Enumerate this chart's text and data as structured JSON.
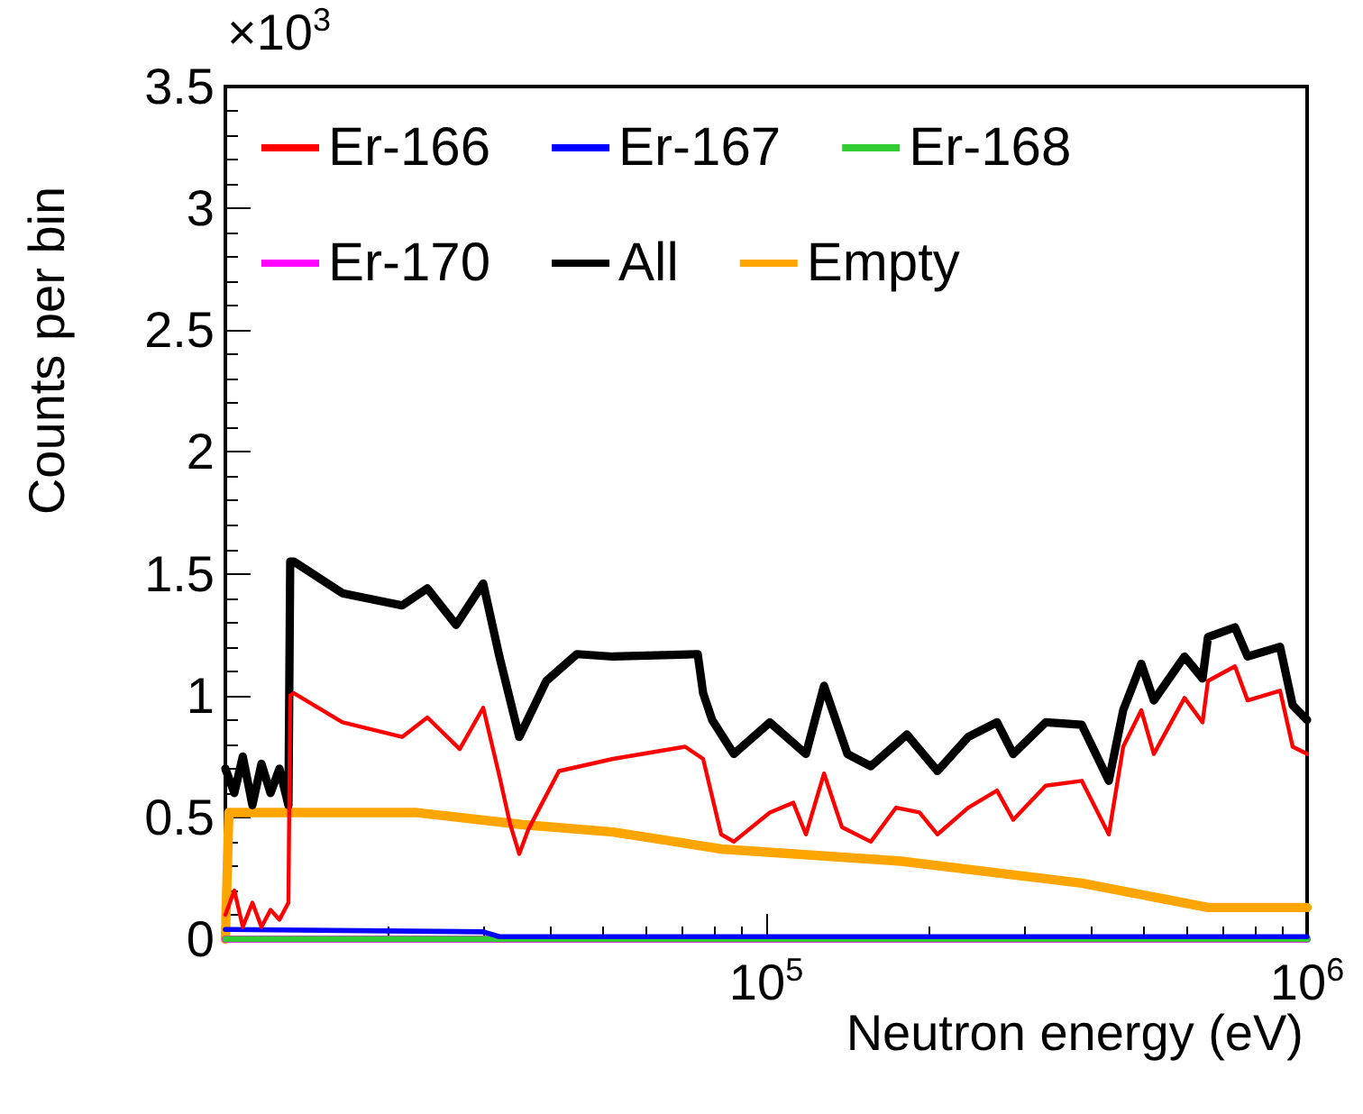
{
  "chart_data": {
    "type": "line",
    "xlabel": "Neutron energy (eV)",
    "ylabel": "Counts per bin",
    "annotations": [
      "×10$^{3}$"
    ],
    "log": "x",
    "grid": false,
    "legend": "top",
    "line_style": "solid",
    "marker": "none",
    "xlim": [
      10000,
      1000000
    ],
    "xticks": [
      {
        "value": 10000,
        "label": null
      },
      {
        "value": 100000,
        "label": "10$^{5}$"
      },
      {
        "value": 1000000,
        "label": "10$^{6}$"
      }
    ],
    "ylim": [
      0,
      3.5
    ],
    "yticks": [
      0,
      0.5,
      1,
      1.5,
      2,
      2.5,
      3,
      3.5
    ],
    "series": [
      {
        "name": "Er-166",
        "color": "#ff0000",
        "x": [
          10000,
          10390,
          10770,
          11220,
          11660,
          12120,
          12590,
          13080,
          13180,
          13390,
          16460,
          21220,
          23630,
          27120,
          29970,
          32110,
          33630,
          34940,
          36310,
          41380,
          52070,
          70790,
          76440,
          82540,
          87100,
          101550,
          112200,
          118400,
          127900,
          138000,
          156100,
          173800,
          192000,
          207300,
          236300,
          267100,
          286200,
          328600,
          383100,
          429900,
          457100,
          493600,
          520700,
          593400,
          640700,
          655700,
          735600,
          776200,
          891300,
          940400,
          1000000
        ],
        "values": [
          0.1,
          0.2,
          0.05,
          0.15,
          0.05,
          0.12,
          0.08,
          0.15,
          1.0,
          1.01,
          0.89,
          0.83,
          0.91,
          0.78,
          0.95,
          0.67,
          0.47,
          0.35,
          0.45,
          0.69,
          0.74,
          0.79,
          0.74,
          0.43,
          0.4,
          0.52,
          0.56,
          0.43,
          0.68,
          0.46,
          0.4,
          0.54,
          0.52,
          0.43,
          0.54,
          0.61,
          0.49,
          0.63,
          0.65,
          0.43,
          0.79,
          0.94,
          0.76,
          0.99,
          0.89,
          1.06,
          1.12,
          0.98,
          1.02,
          0.79,
          0.76
        ]
      },
      {
        "name": "Er-167",
        "color": "#0000ff",
        "x": [
          10000,
          29970,
          32110,
          1000000
        ],
        "values": [
          0.04,
          0.03,
          0.01,
          0.01
        ]
      },
      {
        "name": "Er-168",
        "color": "#33cc33",
        "x": [
          10000,
          1000000
        ],
        "values": [
          0,
          0
        ]
      },
      {
        "name": "Er-170",
        "color": "#ff00ff",
        "x": [
          10000,
          1000000
        ],
        "values": [
          0,
          0
        ]
      },
      {
        "name": "All",
        "color": "#000000",
        "x": [
          10000,
          10390,
          10770,
          11220,
          11660,
          12120,
          12590,
          13080,
          13180,
          13390,
          16460,
          21220,
          23630,
          26710,
          29970,
          32110,
          34940,
          39210,
          44670,
          52070,
          74700,
          76440,
          79430,
          87100,
          101550,
          118400,
          127900,
          141300,
          156100,
          182000,
          207300,
          236300,
          267100,
          286200,
          328600,
          383100,
          429900,
          457100,
          493600,
          520700,
          593400,
          640700,
          655700,
          735600,
          776200,
          891300,
          940400,
          1000000
        ],
        "values": [
          0.7,
          0.6,
          0.75,
          0.55,
          0.72,
          0.6,
          0.7,
          0.55,
          1.55,
          1.55,
          1.42,
          1.37,
          1.44,
          1.29,
          1.46,
          1.16,
          0.83,
          1.06,
          1.17,
          1.16,
          1.17,
          1.01,
          0.9,
          0.76,
          0.89,
          0.76,
          1.04,
          0.76,
          0.71,
          0.84,
          0.69,
          0.83,
          0.89,
          0.76,
          0.89,
          0.88,
          0.65,
          0.94,
          1.13,
          0.98,
          1.16,
          1.07,
          1.24,
          1.28,
          1.16,
          1.2,
          0.96,
          0.9
        ]
      },
      {
        "name": "Empty",
        "color": "#ffa500",
        "x": [
          10000,
          10150,
          22390,
          35480,
          52070,
          82540,
          177800,
          383100,
          655700,
          1000000
        ],
        "values": [
          0,
          0.52,
          0.52,
          0.47,
          0.44,
          0.37,
          0.32,
          0.23,
          0.13,
          0.13
        ]
      }
    ]
  }
}
